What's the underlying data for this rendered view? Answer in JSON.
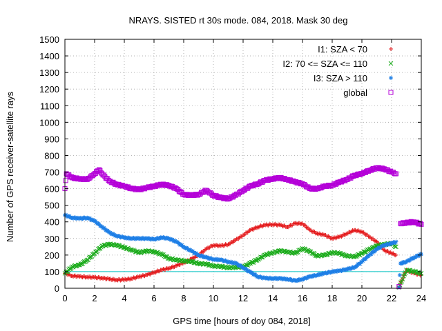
{
  "chart_data": {
    "type": "scatter",
    "title": "NRAYS. SISTED rt 30s mode. 084, 2018. Mask 30 deg",
    "xlabel": "GPS time [hours of doy 084, 2018]",
    "ylabel": "Number of GPS receiver-satellite rays",
    "xlim": [
      0,
      24
    ],
    "ylim": [
      0,
      1500
    ],
    "x_ticks": [
      "0",
      "2",
      "4",
      "6",
      "8",
      "10",
      "12",
      "14",
      "16",
      "18",
      "20",
      "22",
      "24"
    ],
    "y_ticks": [
      "0",
      "100",
      "200",
      "300",
      "400",
      "500",
      "600",
      "700",
      "800",
      "900",
      "1000",
      "1100",
      "1200",
      "1300",
      "1400",
      "1500"
    ],
    "grid": true,
    "legend_position": "top-right",
    "reference_line": {
      "y": 100,
      "color": "#00c0c0"
    },
    "series": [
      {
        "name": "I1: SZA < 70",
        "marker": "+",
        "color": "#e41a1c",
        "points": [
          [
            0.0,
            90
          ],
          [
            0.5,
            75
          ],
          [
            1.0,
            70
          ],
          [
            1.5,
            68
          ],
          [
            2.0,
            65
          ],
          [
            2.5,
            62
          ],
          [
            3.0,
            55
          ],
          [
            3.5,
            50
          ],
          [
            4.0,
            52
          ],
          [
            4.5,
            58
          ],
          [
            5.0,
            70
          ],
          [
            5.5,
            80
          ],
          [
            6.0,
            95
          ],
          [
            6.5,
            110
          ],
          [
            7.0,
            120
          ],
          [
            7.5,
            135
          ],
          [
            8.0,
            155
          ],
          [
            8.5,
            175
          ],
          [
            9.0,
            200
          ],
          [
            9.5,
            235
          ],
          [
            10.0,
            260
          ],
          [
            10.5,
            255
          ],
          [
            11.0,
            265
          ],
          [
            11.5,
            290
          ],
          [
            12.0,
            320
          ],
          [
            12.5,
            350
          ],
          [
            13.0,
            370
          ],
          [
            13.5,
            380
          ],
          [
            14.0,
            385
          ],
          [
            14.5,
            380
          ],
          [
            15.0,
            370
          ],
          [
            15.5,
            390
          ],
          [
            16.0,
            390
          ],
          [
            16.5,
            350
          ],
          [
            17.0,
            330
          ],
          [
            17.5,
            320
          ],
          [
            18.0,
            300
          ],
          [
            18.5,
            310
          ],
          [
            19.0,
            330
          ],
          [
            19.5,
            350
          ],
          [
            20.0,
            340
          ],
          [
            20.5,
            310
          ],
          [
            21.0,
            280
          ],
          [
            21.5,
            230
          ],
          [
            22.0,
            210
          ],
          [
            22.3,
            200
          ],
          [
            22.5,
            10
          ],
          [
            23.0,
            110
          ],
          [
            23.5,
            90
          ],
          [
            24.0,
            80
          ]
        ]
      },
      {
        "name": "I2: 70 <= SZA <= 110",
        "marker": "x",
        "color": "#1aab1a",
        "points": [
          [
            0.0,
            90
          ],
          [
            0.5,
            130
          ],
          [
            1.0,
            140
          ],
          [
            1.5,
            170
          ],
          [
            2.0,
            210
          ],
          [
            2.5,
            255
          ],
          [
            3.0,
            265
          ],
          [
            3.5,
            260
          ],
          [
            4.0,
            245
          ],
          [
            4.5,
            230
          ],
          [
            5.0,
            215
          ],
          [
            5.5,
            225
          ],
          [
            6.0,
            220
          ],
          [
            6.5,
            205
          ],
          [
            7.0,
            180
          ],
          [
            7.5,
            170
          ],
          [
            8.0,
            165
          ],
          [
            8.5,
            160
          ],
          [
            9.0,
            150
          ],
          [
            9.5,
            145
          ],
          [
            10.0,
            135
          ],
          [
            10.5,
            130
          ],
          [
            11.0,
            125
          ],
          [
            11.5,
            125
          ],
          [
            12.0,
            130
          ],
          [
            12.5,
            150
          ],
          [
            13.0,
            175
          ],
          [
            13.5,
            200
          ],
          [
            14.0,
            215
          ],
          [
            14.5,
            225
          ],
          [
            15.0,
            220
          ],
          [
            15.5,
            210
          ],
          [
            16.0,
            240
          ],
          [
            16.5,
            220
          ],
          [
            17.0,
            195
          ],
          [
            17.5,
            200
          ],
          [
            18.0,
            215
          ],
          [
            18.5,
            210
          ],
          [
            19.0,
            195
          ],
          [
            19.5,
            190
          ],
          [
            20.0,
            210
          ],
          [
            20.5,
            235
          ],
          [
            21.0,
            255
          ],
          [
            21.5,
            265
          ],
          [
            22.0,
            270
          ],
          [
            22.3,
            250
          ],
          [
            22.5,
            5
          ],
          [
            23.0,
            110
          ],
          [
            23.5,
            100
          ],
          [
            24.0,
            90
          ]
        ]
      },
      {
        "name": "I3: SZA > 110",
        "marker": "*",
        "color": "#1e7fe6",
        "points": [
          [
            0.0,
            440
          ],
          [
            0.5,
            425
          ],
          [
            1.0,
            420
          ],
          [
            1.5,
            425
          ],
          [
            2.0,
            405
          ],
          [
            2.5,
            370
          ],
          [
            3.0,
            335
          ],
          [
            3.5,
            315
          ],
          [
            4.0,
            305
          ],
          [
            4.5,
            300
          ],
          [
            5.0,
            300
          ],
          [
            5.5,
            300
          ],
          [
            6.0,
            295
          ],
          [
            6.5,
            305
          ],
          [
            7.0,
            300
          ],
          [
            7.5,
            280
          ],
          [
            8.0,
            250
          ],
          [
            8.5,
            225
          ],
          [
            9.0,
            200
          ],
          [
            9.5,
            185
          ],
          [
            10.0,
            175
          ],
          [
            10.5,
            170
          ],
          [
            11.0,
            160
          ],
          [
            11.5,
            150
          ],
          [
            12.0,
            125
          ],
          [
            12.5,
            95
          ],
          [
            13.0,
            70
          ],
          [
            13.5,
            60
          ],
          [
            14.0,
            60
          ],
          [
            14.5,
            58
          ],
          [
            15.0,
            55
          ],
          [
            15.5,
            45
          ],
          [
            16.0,
            55
          ],
          [
            16.5,
            70
          ],
          [
            17.0,
            80
          ],
          [
            17.5,
            90
          ],
          [
            18.0,
            100
          ],
          [
            18.5,
            105
          ],
          [
            19.0,
            115
          ],
          [
            19.5,
            125
          ],
          [
            20.0,
            160
          ],
          [
            20.5,
            200
          ],
          [
            21.0,
            235
          ],
          [
            21.5,
            260
          ],
          [
            22.0,
            270
          ],
          [
            22.3,
            280
          ],
          [
            22.5,
            5
          ],
          [
            22.6,
            150
          ],
          [
            23.0,
            160
          ],
          [
            23.5,
            185
          ],
          [
            24.0,
            205
          ]
        ]
      },
      {
        "name": "global",
        "marker": "square",
        "color": "#b400d8",
        "points": [
          [
            0.0,
            600
          ],
          [
            0.1,
            690
          ],
          [
            0.5,
            665
          ],
          [
            1.0,
            660
          ],
          [
            1.5,
            655
          ],
          [
            2.0,
            690
          ],
          [
            2.3,
            715
          ],
          [
            2.5,
            690
          ],
          [
            3.0,
            645
          ],
          [
            3.5,
            625
          ],
          [
            4.0,
            615
          ],
          [
            4.5,
            600
          ],
          [
            5.0,
            595
          ],
          [
            5.5,
            605
          ],
          [
            6.0,
            615
          ],
          [
            6.5,
            625
          ],
          [
            7.0,
            620
          ],
          [
            7.5,
            600
          ],
          [
            8.0,
            565
          ],
          [
            8.5,
            560
          ],
          [
            9.0,
            565
          ],
          [
            9.5,
            590
          ],
          [
            10.0,
            560
          ],
          [
            10.5,
            545
          ],
          [
            11.0,
            540
          ],
          [
            11.5,
            560
          ],
          [
            12.0,
            590
          ],
          [
            12.5,
            615
          ],
          [
            13.0,
            630
          ],
          [
            13.5,
            650
          ],
          [
            14.0,
            660
          ],
          [
            14.5,
            665
          ],
          [
            15.0,
            655
          ],
          [
            15.5,
            640
          ],
          [
            16.0,
            630
          ],
          [
            16.5,
            600
          ],
          [
            17.0,
            600
          ],
          [
            17.5,
            615
          ],
          [
            18.0,
            620
          ],
          [
            18.5,
            640
          ],
          [
            19.0,
            655
          ],
          [
            19.5,
            680
          ],
          [
            20.0,
            690
          ],
          [
            20.5,
            710
          ],
          [
            21.0,
            725
          ],
          [
            21.5,
            720
          ],
          [
            22.0,
            700
          ],
          [
            22.3,
            690
          ],
          [
            22.5,
            10
          ],
          [
            22.6,
            390
          ],
          [
            23.0,
            395
          ],
          [
            23.5,
            400
          ],
          [
            24.0,
            385
          ]
        ]
      }
    ]
  }
}
